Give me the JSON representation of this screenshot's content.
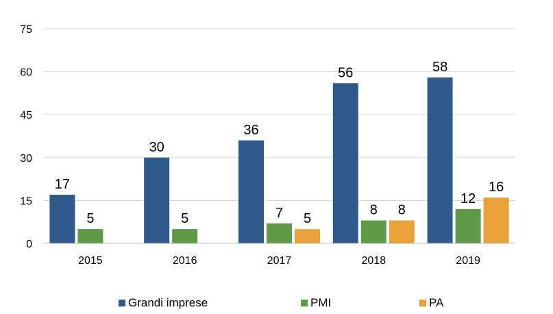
{
  "chart_data": {
    "type": "bar",
    "categories": [
      "2015",
      "2016",
      "2017",
      "2018",
      "2019"
    ],
    "series": [
      {
        "name": "Grandi imprese",
        "color": "#2e5a8c",
        "values": [
          17,
          30,
          36,
          56,
          58
        ]
      },
      {
        "name": "PMI",
        "color": "#5e9a48",
        "values": [
          5,
          5,
          7,
          8,
          12
        ]
      },
      {
        "name": "PA",
        "color": "#e9a23b",
        "values": [
          null,
          null,
          5,
          8,
          16
        ]
      }
    ],
    "yticks": [
      "0",
      "15",
      "30",
      "45",
      "60",
      "75"
    ],
    "ylim": [
      0,
      75
    ],
    "grid": true,
    "legend_position": "bottom"
  }
}
